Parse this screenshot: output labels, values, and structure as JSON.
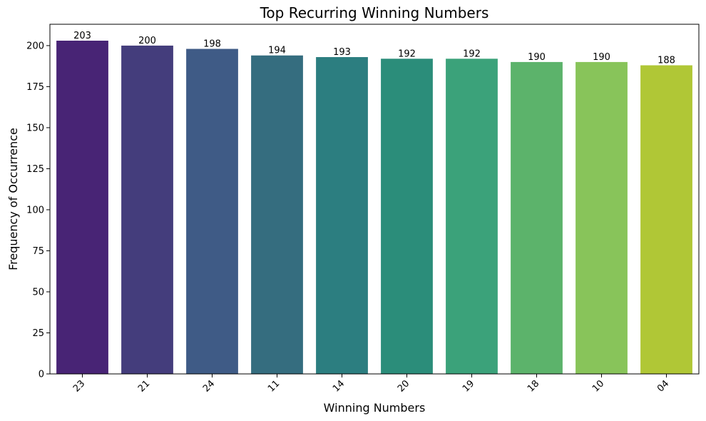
{
  "chart_data": {
    "type": "bar",
    "title": "Top Recurring Winning Numbers",
    "xlabel": "Winning Numbers",
    "ylabel": "Frequency of Occurrence",
    "categories": [
      "23",
      "21",
      "24",
      "11",
      "14",
      "20",
      "19",
      "18",
      "10",
      "04"
    ],
    "values": [
      203,
      200,
      198,
      194,
      193,
      192,
      192,
      190,
      190,
      188
    ],
    "colors": [
      "#482475",
      "#443d7c",
      "#3f5b86",
      "#356d7f",
      "#2c7e80",
      "#2b8d7a",
      "#3ba27a",
      "#5cb36b",
      "#88c45a",
      "#b0c736"
    ],
    "ylim": [
      0,
      213
    ],
    "yticks": [
      0,
      25,
      50,
      75,
      100,
      125,
      150,
      175,
      200
    ],
    "grid": false,
    "legend": false
  }
}
